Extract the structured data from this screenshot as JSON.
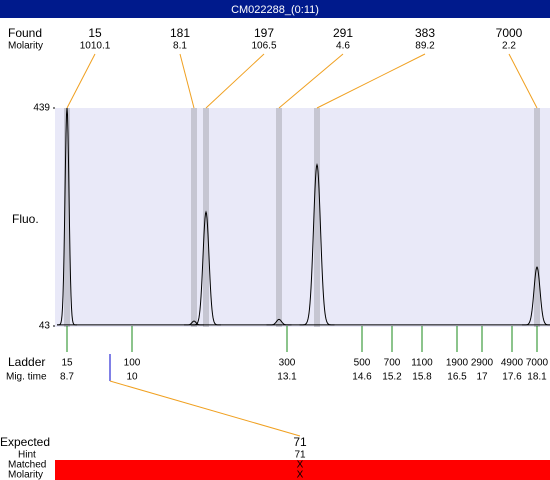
{
  "header": {
    "title": "CM022288_(0:11)"
  },
  "found": {
    "label": "Found",
    "molarity_label": "Molarity",
    "peaks": [
      {
        "size": "15",
        "molarity": "1010.1",
        "time": 8.7,
        "height": 439
      },
      {
        "size": "181",
        "molarity": "8.1",
        "time": 11.24,
        "height": 52
      },
      {
        "size": "197",
        "molarity": "106.5",
        "time": 11.48,
        "height": 250
      },
      {
        "size": "291",
        "molarity": "4.6",
        "time": 12.94,
        "height": 55
      },
      {
        "size": "383",
        "molarity": "89.2",
        "time": 13.7,
        "height": 336
      },
      {
        "size": "7000",
        "molarity": "2.2",
        "time": 18.1,
        "height": 150
      }
    ]
  },
  "plot": {
    "y_label": "Fluo.",
    "ylim": [
      43,
      439
    ],
    "yticks": [
      43,
      439
    ],
    "baseline": 45,
    "background": "#e9e9f8"
  },
  "ladder": {
    "label": "Ladder",
    "time_label": "Mig. time",
    "markers": [
      {
        "size": "15",
        "time": 8.7
      },
      {
        "size": "100",
        "time": 10
      },
      {
        "size": "300",
        "time": 13.1
      },
      {
        "size": "500",
        "time": 14.6
      },
      {
        "size": "700",
        "time": 15.2
      },
      {
        "size": "1100",
        "time": 15.8
      },
      {
        "size": "1900",
        "time": 16.5
      },
      {
        "size": "2900",
        "time": 17
      },
      {
        "size": "4900",
        "time": 17.6
      },
      {
        "size": "7000",
        "time": 18.1
      }
    ]
  },
  "expected": {
    "label": "Expected",
    "value": "71",
    "time": 9.56,
    "hint_label": "Hint",
    "hint": "71",
    "matched_label": "Matched",
    "matched": "X",
    "molarity_label": "Molarity",
    "molarity": "X"
  }
}
